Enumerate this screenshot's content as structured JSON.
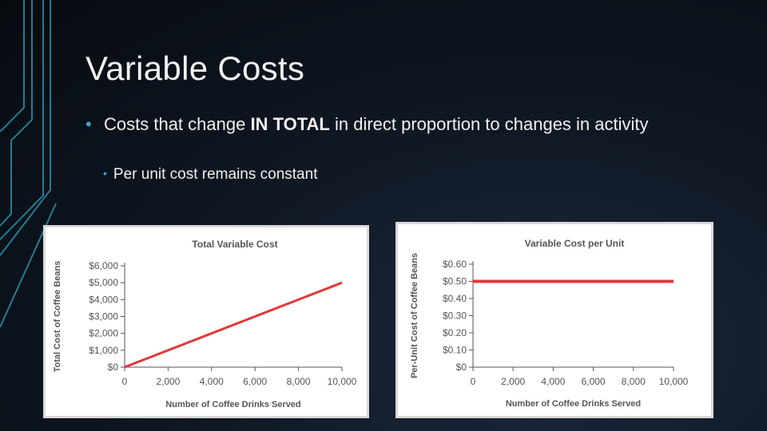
{
  "slide": {
    "title": "Variable Costs",
    "bullet_main_pre": "Costs that change ",
    "bullet_main_bold": "IN TOTAL",
    "bullet_main_post": " in direct proportion to changes in activity",
    "bullet_sub": "Per unit cost remains constant"
  },
  "colors": {
    "accent": "#3aa6c8",
    "line": "#e0393b",
    "background": "#0d141e"
  },
  "chart_data": [
    {
      "type": "line",
      "title": "Total Variable Cost",
      "xlabel": "Number of Coffee Drinks Served",
      "ylabel": "Total Cost of Coffee Beans",
      "x_ticks": [
        "0",
        "2,000",
        "4,000",
        "6,000",
        "8,000",
        "10,000"
      ],
      "y_ticks": [
        "$0",
        "$1,000",
        "$2,000",
        "$3,000",
        "$4,000",
        "$5,000",
        "$6,000"
      ],
      "xlim": [
        0,
        10000
      ],
      "ylim": [
        0,
        6000
      ],
      "series": [
        {
          "x": [
            0,
            10000
          ],
          "y": [
            0,
            5000
          ]
        }
      ]
    },
    {
      "type": "line",
      "title": "Variable Cost per Unit",
      "xlabel": "Number of Coffee Drinks Served",
      "ylabel": "Per-Unit Cost of Coffee Beans",
      "x_ticks": [
        "0",
        "2,000",
        "4,000",
        "6,000",
        "8,000",
        "10,000"
      ],
      "y_ticks": [
        "$0",
        "$0.10",
        "$0.20",
        "$0.30",
        "$0.40",
        "$0.50",
        "$0.60"
      ],
      "xlim": [
        0,
        10000
      ],
      "ylim": [
        0,
        0.6
      ],
      "series": [
        {
          "x": [
            0,
            10000
          ],
          "y": [
            0.5,
            0.5
          ]
        }
      ]
    }
  ]
}
